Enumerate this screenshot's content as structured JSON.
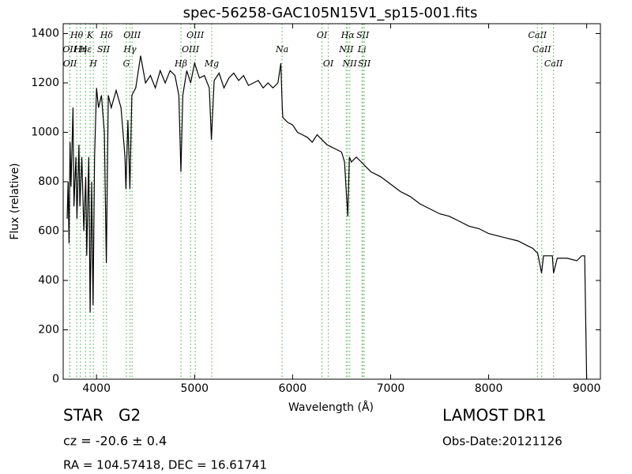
{
  "chart_data": {
    "type": "line",
    "title": "spec-56258-GAC105N15V1_sp15-001.fits",
    "x_label": "Wavelength (Å)",
    "y_label": "Flux (relative)",
    "xlim": [
      3660,
      9140
    ],
    "ylim": [
      0,
      1440
    ],
    "xticks": [
      4000,
      5000,
      6000,
      7000,
      8000,
      9000
    ],
    "yticks": [
      0,
      200,
      400,
      600,
      800,
      1000,
      1200,
      1400
    ],
    "x": [
      3700,
      3710,
      3720,
      3730,
      3740,
      3760,
      3770,
      3790,
      3800,
      3820,
      3830,
      3850,
      3870,
      3890,
      3900,
      3920,
      3935,
      3950,
      3965,
      3980,
      4000,
      4020,
      4050,
      4080,
      4100,
      4120,
      4150,
      4200,
      4250,
      4290,
      4300,
      4320,
      4340,
      4360,
      4400,
      4450,
      4500,
      4550,
      4600,
      4650,
      4700,
      4750,
      4800,
      4840,
      4861,
      4880,
      4920,
      4960,
      5000,
      5050,
      5100,
      5150,
      5172,
      5200,
      5250,
      5300,
      5350,
      5400,
      5450,
      5500,
      5550,
      5600,
      5650,
      5700,
      5750,
      5800,
      5850,
      5880,
      5895,
      5900,
      5950,
      6000,
      6050,
      6100,
      6150,
      6200,
      6250,
      6300,
      6350,
      6400,
      6450,
      6500,
      6530,
      6563,
      6580,
      6600,
      6650,
      6700,
      6750,
      6800,
      6900,
      7000,
      7100,
      7200,
      7300,
      7400,
      7500,
      7600,
      7700,
      7800,
      7900,
      8000,
      8100,
      8200,
      8300,
      8400,
      8450,
      8500,
      8540,
      8560,
      8600,
      8650,
      8662,
      8700,
      8800,
      8900,
      8950,
      8980,
      9000
    ],
    "series": [
      {
        "color": "#000000",
        "values": [
          650,
          800,
          550,
          960,
          780,
          1100,
          700,
          900,
          650,
          950,
          700,
          900,
          600,
          820,
          500,
          900,
          270,
          800,
          300,
          900,
          1180,
          1100,
          1150,
          1000,
          470,
          1150,
          1100,
          1170,
          1100,
          900,
          770,
          1050,
          770,
          1150,
          1180,
          1310,
          1200,
          1230,
          1180,
          1250,
          1200,
          1250,
          1230,
          1150,
          840,
          1150,
          1250,
          1200,
          1280,
          1220,
          1230,
          1180,
          970,
          1210,
          1240,
          1180,
          1220,
          1240,
          1210,
          1230,
          1190,
          1200,
          1210,
          1180,
          1200,
          1180,
          1200,
          1280,
          1100,
          1060,
          1040,
          1030,
          1000,
          990,
          980,
          960,
          990,
          970,
          950,
          940,
          930,
          920,
          880,
          660,
          900,
          880,
          900,
          880,
          860,
          840,
          820,
          790,
          760,
          740,
          710,
          690,
          670,
          660,
          640,
          620,
          610,
          590,
          580,
          570,
          560,
          540,
          530,
          510,
          430,
          500,
          500,
          500,
          430,
          490,
          490,
          480,
          500,
          500,
          0
        ]
      }
    ],
    "spectral_lines": [
      {
        "label": "OII",
        "wavelength": 3726
      },
      {
        "label": "OII",
        "wavelength": 3729
      },
      {
        "label": "Hθ",
        "wavelength": 3798
      },
      {
        "label": "Hη",
        "wavelength": 3835
      },
      {
        "label": "Hε",
        "wavelength": 3889
      },
      {
        "label": "K",
        "wavelength": 3934
      },
      {
        "label": "H",
        "wavelength": 3968
      },
      {
        "label": "SII",
        "wavelength": 4072
      },
      {
        "label": "Hδ",
        "wavelength": 4102
      },
      {
        "label": "G",
        "wavelength": 4305
      },
      {
        "label": "Hγ",
        "wavelength": 4341
      },
      {
        "label": "OIII",
        "wavelength": 4363
      },
      {
        "label": "Hβ",
        "wavelength": 4861
      },
      {
        "label": "OIII",
        "wavelength": 4959
      },
      {
        "label": "OIII",
        "wavelength": 5007
      },
      {
        "label": "Mg",
        "wavelength": 5175
      },
      {
        "label": "Na",
        "wavelength": 5893
      },
      {
        "label": "OI",
        "wavelength": 6300
      },
      {
        "label": "OI",
        "wavelength": 6364
      },
      {
        "label": "NII",
        "wavelength": 6548
      },
      {
        "label": "Hα",
        "wavelength": 6563
      },
      {
        "label": "NII",
        "wavelength": 6583
      },
      {
        "label": "Li",
        "wavelength": 6708
      },
      {
        "label": "SII",
        "wavelength": 6716
      },
      {
        "label": "SII",
        "wavelength": 6731
      },
      {
        "label": "CaII",
        "wavelength": 8498
      },
      {
        "label": "CaII",
        "wavelength": 8542
      },
      {
        "label": "CaII",
        "wavelength": 8662
      }
    ],
    "line_color": "#5fb85f",
    "annotations": [
      "STAR   G2",
      "cz = -20.6 ± 0.4",
      "RA = 104.57418, DEC = 16.61741",
      "LAMOST DR1",
      "Obs-Date:20121126"
    ]
  }
}
